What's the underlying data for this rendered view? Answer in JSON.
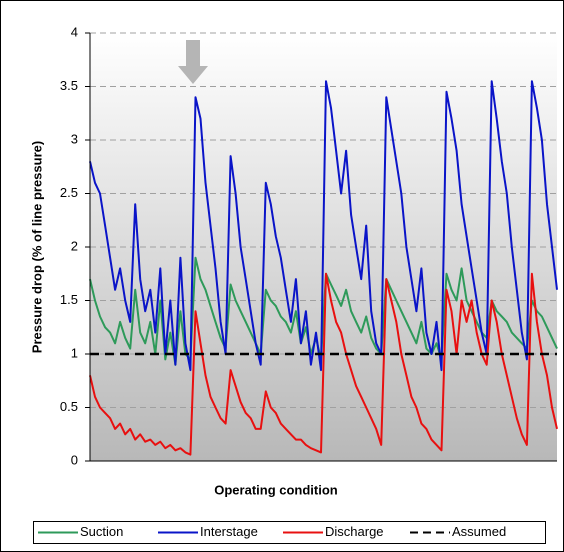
{
  "chart_data": {
    "type": "line",
    "x_label": "Operating condition",
    "y_label": "Pressure drop (% of line pressure)",
    "ylim": [
      0,
      4
    ],
    "yticks": [
      0,
      0.5,
      1,
      1.5,
      2,
      2.5,
      3,
      3.5,
      4
    ],
    "grid": true,
    "legend": "bottom",
    "categories": [
      null,
      null,
      null,
      null,
      null,
      null,
      null,
      null,
      null,
      null,
      null,
      null,
      null,
      null,
      null,
      null,
      null,
      null,
      null,
      null,
      null,
      null,
      null,
      null,
      null,
      null,
      null,
      null,
      null,
      null,
      null,
      null,
      null,
      null,
      null,
      null,
      null,
      null,
      null,
      null,
      null,
      null,
      null,
      null,
      null,
      null,
      null,
      null,
      null,
      null,
      null,
      null,
      null,
      null,
      null,
      null,
      null,
      null,
      null,
      null,
      null,
      null,
      null,
      null,
      null,
      null,
      null,
      null,
      null,
      null,
      null,
      null,
      null,
      null,
      null,
      null,
      null,
      null,
      null,
      null,
      null,
      null,
      null,
      null,
      null,
      null,
      null,
      null,
      null,
      null,
      null,
      null,
      null,
      null
    ],
    "series": [
      {
        "name": "Suction",
        "color": "#2e9a5a",
        "values": [
          1.7,
          1.5,
          1.35,
          1.25,
          1.2,
          1.1,
          1.3,
          1.15,
          1.05,
          1.6,
          1.2,
          1.1,
          1.3,
          1.0,
          1.5,
          0.95,
          1.2,
          0.9,
          1.4,
          1.0,
          0.95,
          1.9,
          1.7,
          1.6,
          1.45,
          1.3,
          1.15,
          1.05,
          1.65,
          1.5,
          1.4,
          1.3,
          1.2,
          1.1,
          1.0,
          1.6,
          1.5,
          1.45,
          1.35,
          1.3,
          1.2,
          1.4,
          1.1,
          1.25,
          1.0,
          1.15,
          0.95,
          1.75,
          1.65,
          1.55,
          1.45,
          1.6,
          1.4,
          1.3,
          1.2,
          1.35,
          1.15,
          1.05,
          1.0,
          1.7,
          1.6,
          1.5,
          1.4,
          1.3,
          1.2,
          1.1,
          1.3,
          1.05,
          1.0,
          1.1,
          0.95,
          1.75,
          1.6,
          1.5,
          1.8,
          1.5,
          1.4,
          1.3,
          1.2,
          1.15,
          1.5,
          1.4,
          1.35,
          1.3,
          1.2,
          1.15,
          1.1,
          1.05,
          1.5,
          1.4,
          1.35,
          1.25,
          1.15,
          1.05
        ]
      },
      {
        "name": "Interstage",
        "color": "#0a14c8",
        "values": [
          2.8,
          2.6,
          2.5,
          2.2,
          1.9,
          1.6,
          1.8,
          1.5,
          1.3,
          2.4,
          1.7,
          1.4,
          1.6,
          1.2,
          1.8,
          1.0,
          1.5,
          0.9,
          1.9,
          1.1,
          0.85,
          3.4,
          3.2,
          2.6,
          2.2,
          1.8,
          1.3,
          1.0,
          2.85,
          2.5,
          2.0,
          1.7,
          1.4,
          1.1,
          0.9,
          2.6,
          2.4,
          2.1,
          1.9,
          1.6,
          1.3,
          1.7,
          1.1,
          1.4,
          0.9,
          1.2,
          0.85,
          3.55,
          3.3,
          2.9,
          2.5,
          2.9,
          2.3,
          2.0,
          1.7,
          2.2,
          1.4,
          1.1,
          1.0,
          3.4,
          3.1,
          2.8,
          2.5,
          2.0,
          1.7,
          1.4,
          1.8,
          1.2,
          1.0,
          1.3,
          0.85,
          3.45,
          3.2,
          2.9,
          2.4,
          2.1,
          1.8,
          1.5,
          1.2,
          1.0,
          3.55,
          3.2,
          2.8,
          2.5,
          2.0,
          1.6,
          1.2,
          0.95,
          3.55,
          3.3,
          3.0,
          2.4,
          2.0,
          1.6
        ]
      },
      {
        "name": "Discharge",
        "color": "#e81010",
        "values": [
          0.8,
          0.6,
          0.5,
          0.45,
          0.4,
          0.3,
          0.35,
          0.25,
          0.3,
          0.2,
          0.25,
          0.18,
          0.2,
          0.15,
          0.18,
          0.12,
          0.15,
          0.1,
          0.12,
          0.08,
          0.06,
          1.4,
          1.1,
          0.8,
          0.6,
          0.5,
          0.4,
          0.35,
          0.85,
          0.7,
          0.55,
          0.45,
          0.4,
          0.3,
          0.3,
          0.65,
          0.5,
          0.45,
          0.35,
          0.3,
          0.25,
          0.2,
          0.2,
          0.15,
          0.12,
          0.1,
          0.08,
          1.75,
          1.5,
          1.3,
          1.2,
          1.0,
          0.85,
          0.7,
          0.6,
          0.5,
          0.4,
          0.3,
          0.15,
          1.7,
          1.5,
          1.3,
          1.0,
          0.8,
          0.6,
          0.5,
          0.35,
          0.3,
          0.2,
          0.15,
          0.1,
          1.6,
          1.4,
          1.0,
          1.5,
          1.3,
          1.5,
          1.2,
          1.0,
          0.9,
          1.5,
          1.3,
          1.0,
          0.8,
          0.6,
          0.4,
          0.25,
          0.15,
          1.75,
          1.3,
          1.0,
          0.8,
          0.5,
          0.3
        ]
      }
    ],
    "reference_line": {
      "name": "Assumed",
      "value": 1,
      "color": "#000000",
      "dashed": true
    }
  }
}
